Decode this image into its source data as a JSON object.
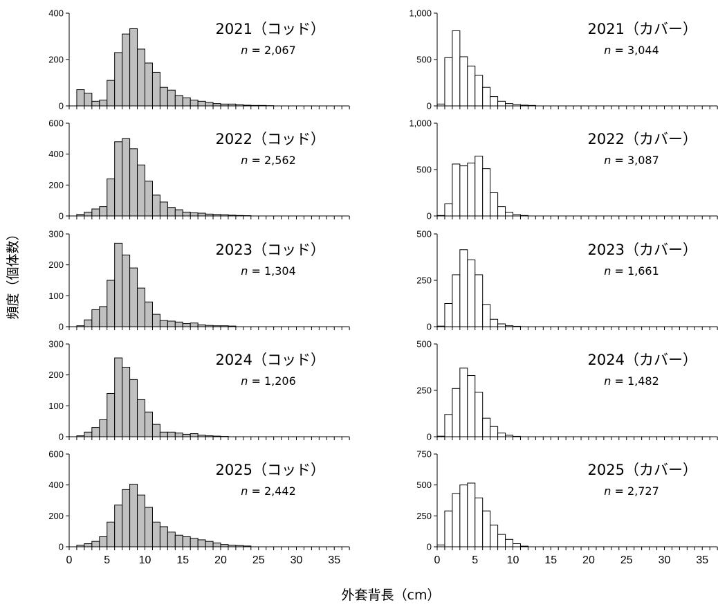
{
  "figure": {
    "y_axis_title": "頻度（個体数）",
    "x_axis_title": "外套背長（cm）"
  },
  "chart_data": [
    {
      "type": "bar",
      "title": "2021（コッド）",
      "n_label": "n = 2,067",
      "xlabel": "外套背長（cm）",
      "ylabel": "頻度（個体数）",
      "bar_fill": "#c0c0c0",
      "ylim": [
        0,
        400
      ],
      "yticks": [
        0,
        200,
        400
      ],
      "ytick_labels": [
        "0",
        "200",
        "400"
      ],
      "xlim": [
        0,
        37
      ],
      "xticks": [
        0,
        5,
        10,
        15,
        20,
        25,
        30,
        35
      ],
      "x": [
        1,
        2,
        3,
        4,
        5,
        6,
        7,
        8,
        9,
        10,
        11,
        12,
        13,
        14,
        15,
        16,
        17,
        18,
        19,
        20,
        21,
        22,
        23,
        24,
        25,
        26
      ],
      "values": [
        70,
        55,
        20,
        25,
        110,
        230,
        310,
        333,
        245,
        185,
        145,
        80,
        68,
        45,
        35,
        25,
        20,
        15,
        10,
        8,
        8,
        5,
        3,
        2,
        2,
        1
      ]
    },
    {
      "type": "bar",
      "title": "2021（カバー）",
      "n_label": "n = 3,044",
      "xlabel": "外套背長（cm）",
      "ylabel": "頻度（個体数）",
      "bar_fill": "#ffffff",
      "ylim": [
        0,
        1000
      ],
      "yticks": [
        0,
        500,
        1000
      ],
      "ytick_labels": [
        "0",
        "500",
        "1,000"
      ],
      "xlim": [
        0,
        37
      ],
      "xticks": [
        0,
        5,
        10,
        15,
        20,
        25,
        30,
        35
      ],
      "x": [
        0,
        1,
        2,
        3,
        4,
        5,
        6,
        7,
        8,
        9,
        10,
        11,
        12
      ],
      "values": [
        20,
        520,
        810,
        530,
        430,
        330,
        200,
        100,
        50,
        25,
        15,
        8,
        5
      ]
    },
    {
      "type": "bar",
      "title": "2022（コッド）",
      "n_label": "n = 2,562",
      "xlabel": "外套背長（cm）",
      "ylabel": "頻度（個体数）",
      "bar_fill": "#c0c0c0",
      "ylim": [
        0,
        600
      ],
      "yticks": [
        0,
        200,
        400,
        600
      ],
      "ytick_labels": [
        "0",
        "200",
        "400",
        "600"
      ],
      "xlim": [
        0,
        37
      ],
      "xticks": [
        0,
        5,
        10,
        15,
        20,
        25,
        30,
        35
      ],
      "x": [
        1,
        2,
        3,
        4,
        5,
        6,
        7,
        8,
        9,
        10,
        11,
        12,
        13,
        14,
        15,
        16,
        17,
        18,
        19,
        20,
        21,
        22,
        23
      ],
      "values": [
        10,
        25,
        45,
        60,
        240,
        480,
        500,
        435,
        330,
        225,
        135,
        90,
        55,
        40,
        25,
        20,
        18,
        12,
        10,
        8,
        5,
        3,
        2
      ]
    },
    {
      "type": "bar",
      "title": "2022（カバー）",
      "n_label": "n = 3,087",
      "xlabel": "外套背長（cm）",
      "ylabel": "頻度（個体数）",
      "bar_fill": "#ffffff",
      "ylim": [
        0,
        1000
      ],
      "yticks": [
        0,
        500,
        1000
      ],
      "ytick_labels": [
        "0",
        "500",
        "1,000"
      ],
      "xlim": [
        0,
        37
      ],
      "xticks": [
        0,
        5,
        10,
        15,
        20,
        25,
        30,
        35
      ],
      "x": [
        0,
        1,
        2,
        3,
        4,
        5,
        6,
        7,
        8,
        9,
        10,
        11
      ],
      "values": [
        5,
        130,
        560,
        540,
        570,
        645,
        510,
        250,
        100,
        40,
        15,
        5
      ]
    },
    {
      "type": "bar",
      "title": "2023（コッド）",
      "n_label": "n = 1,304",
      "xlabel": "外套背長（cm）",
      "ylabel": "頻度（個体数）",
      "bar_fill": "#c0c0c0",
      "ylim": [
        0,
        300
      ],
      "yticks": [
        0,
        100,
        200,
        300
      ],
      "ytick_labels": [
        "0",
        "100",
        "200",
        "300"
      ],
      "xlim": [
        0,
        37
      ],
      "xticks": [
        0,
        5,
        10,
        15,
        20,
        25,
        30,
        35
      ],
      "x": [
        1,
        2,
        3,
        4,
        5,
        6,
        7,
        8,
        9,
        10,
        11,
        12,
        13,
        14,
        15,
        16,
        17,
        18,
        19,
        20,
        21
      ],
      "values": [
        3,
        22,
        55,
        65,
        150,
        270,
        232,
        190,
        125,
        80,
        40,
        20,
        18,
        15,
        10,
        12,
        6,
        4,
        3,
        3,
        2
      ]
    },
    {
      "type": "bar",
      "title": "2023（カバー）",
      "n_label": "n = 1,661",
      "xlabel": "外套背長（cm）",
      "ylabel": "頻度（個体数）",
      "bar_fill": "#ffffff",
      "ylim": [
        0,
        500
      ],
      "yticks": [
        0,
        250,
        500
      ],
      "ytick_labels": [
        "0",
        "250",
        "500"
      ],
      "xlim": [
        0,
        37
      ],
      "xticks": [
        0,
        5,
        10,
        15,
        20,
        25,
        30,
        35
      ],
      "x": [
        0,
        1,
        2,
        3,
        4,
        5,
        6,
        7,
        8,
        9,
        10
      ],
      "values": [
        3,
        125,
        280,
        415,
        360,
        280,
        120,
        40,
        15,
        5,
        2
      ]
    },
    {
      "type": "bar",
      "title": "2024（コッド）",
      "n_label": "n = 1,206",
      "xlabel": "外套背長（cm）",
      "ylabel": "頻度（個体数）",
      "bar_fill": "#c0c0c0",
      "ylim": [
        0,
        300
      ],
      "yticks": [
        0,
        100,
        200,
        300
      ],
      "ytick_labels": [
        "0",
        "100",
        "200",
        "300"
      ],
      "xlim": [
        0,
        37
      ],
      "xticks": [
        0,
        5,
        10,
        15,
        20,
        25,
        30,
        35
      ],
      "x": [
        1,
        2,
        3,
        4,
        5,
        6,
        7,
        8,
        9,
        10,
        11,
        12,
        13,
        14,
        15,
        16,
        17,
        18,
        19,
        20
      ],
      "values": [
        3,
        15,
        30,
        55,
        140,
        255,
        225,
        185,
        120,
        80,
        40,
        15,
        15,
        12,
        8,
        10,
        5,
        3,
        2,
        1
      ]
    },
    {
      "type": "bar",
      "title": "2024（カバー）",
      "n_label": "n = 1,482",
      "xlabel": "外套背長（cm）",
      "ylabel": "頻度（個体数）",
      "bar_fill": "#ffffff",
      "ylim": [
        0,
        500
      ],
      "yticks": [
        0,
        250,
        500
      ],
      "ytick_labels": [
        "0",
        "250",
        "500"
      ],
      "xlim": [
        0,
        37
      ],
      "xticks": [
        0,
        5,
        10,
        15,
        20,
        25,
        30,
        35
      ],
      "x": [
        0,
        1,
        2,
        3,
        4,
        5,
        6,
        7,
        8,
        9,
        10
      ],
      "values": [
        3,
        120,
        260,
        370,
        330,
        240,
        100,
        55,
        20,
        8,
        2
      ]
    },
    {
      "type": "bar",
      "title": "2025（コッド）",
      "n_label": "n = 2,442",
      "xlabel": "外套背長（cm）",
      "ylabel": "頻度（個体数）",
      "bar_fill": "#c0c0c0",
      "ylim": [
        0,
        600
      ],
      "yticks": [
        0,
        200,
        400,
        600
      ],
      "ytick_labels": [
        "0",
        "200",
        "400",
        "600"
      ],
      "xlim": [
        0,
        37
      ],
      "xticks": [
        0,
        5,
        10,
        15,
        20,
        25,
        30,
        35
      ],
      "x": [
        1,
        2,
        3,
        4,
        5,
        6,
        7,
        8,
        9,
        10,
        11,
        12,
        13,
        14,
        15,
        16,
        17,
        18,
        19,
        20,
        21,
        22,
        23
      ],
      "values": [
        10,
        20,
        35,
        65,
        160,
        270,
        370,
        405,
        335,
        255,
        160,
        130,
        95,
        75,
        65,
        55,
        45,
        35,
        25,
        15,
        10,
        8,
        5
      ]
    },
    {
      "type": "bar",
      "title": "2025（カバー）",
      "n_label": "n = 2,727",
      "xlabel": "外套背長（cm）",
      "ylabel": "頻度（個体数）",
      "bar_fill": "#ffffff",
      "ylim": [
        0,
        750
      ],
      "yticks": [
        0,
        250,
        500,
        750
      ],
      "ytick_labels": [
        "0",
        "250",
        "500",
        "750"
      ],
      "xlim": [
        0,
        37
      ],
      "xticks": [
        0,
        5,
        10,
        15,
        20,
        25,
        30,
        35
      ],
      "x": [
        0,
        1,
        2,
        3,
        4,
        5,
        6,
        7,
        8,
        9,
        10,
        11
      ],
      "values": [
        15,
        290,
        430,
        500,
        515,
        395,
        290,
        175,
        100,
        60,
        25,
        5
      ]
    }
  ]
}
